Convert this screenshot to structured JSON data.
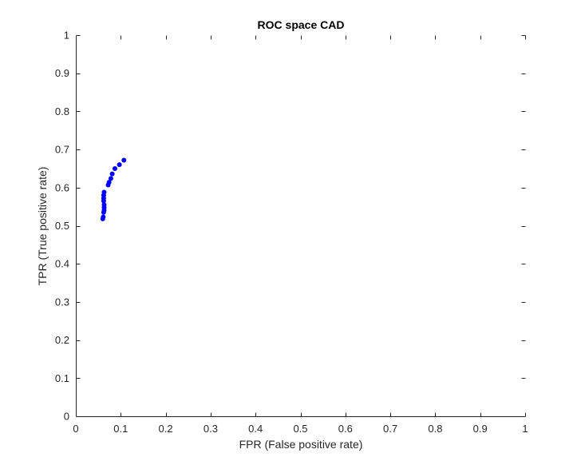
{
  "chart_data": {
    "type": "scatter",
    "title": "ROC space CAD",
    "xlabel": "FPR (False positive rate)",
    "ylabel": "TPR (True positive rate)",
    "xlim": [
      0,
      1
    ],
    "ylim": [
      0,
      1
    ],
    "xticks": [
      "0",
      "0.1",
      "0.2",
      "0.3",
      "0.4",
      "0.5",
      "0.6",
      "0.7",
      "0.8",
      "0.9",
      "1"
    ],
    "yticks": [
      "0",
      "0.1",
      "0.2",
      "0.3",
      "0.4",
      "0.5",
      "0.6",
      "0.7",
      "0.8",
      "0.9",
      "1"
    ],
    "grid": false,
    "marker_color": "#0000ff",
    "series": [
      {
        "x": [
          0.06,
          0.061,
          0.062,
          0.063,
          0.063,
          0.063,
          0.062,
          0.062,
          0.062,
          0.063,
          0.072,
          0.074,
          0.078,
          0.081,
          0.087,
          0.097,
          0.107
        ],
        "y": [
          0.518,
          0.523,
          0.535,
          0.541,
          0.548,
          0.555,
          0.565,
          0.572,
          0.58,
          0.588,
          0.607,
          0.614,
          0.624,
          0.636,
          0.65,
          0.66,
          0.672
        ]
      }
    ]
  }
}
